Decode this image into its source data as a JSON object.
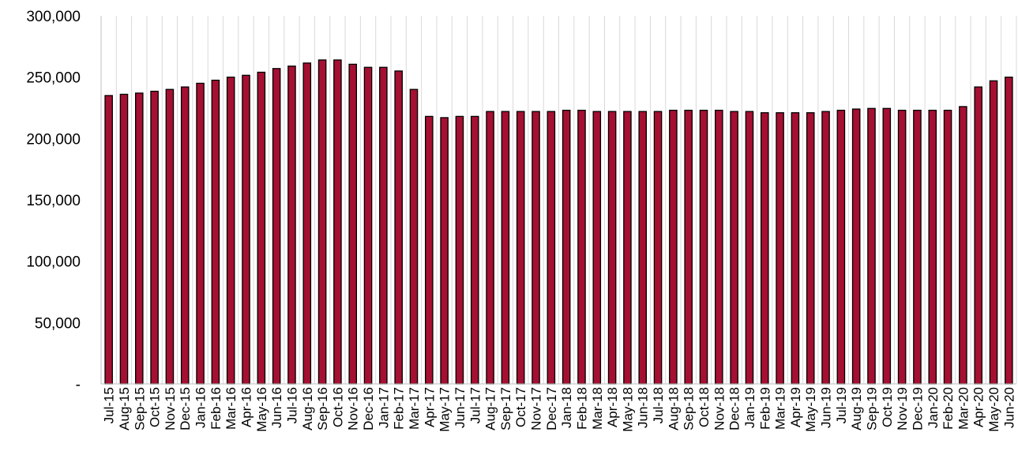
{
  "chart_data": {
    "type": "bar",
    "title": "",
    "xlabel": "",
    "ylabel": "",
    "ylim": [
      0,
      300000
    ],
    "y_ticks": [
      0,
      50000,
      100000,
      150000,
      200000,
      250000,
      300000
    ],
    "y_tick_labels": [
      "-",
      "50,000",
      "100,000",
      "150,000",
      "200,000",
      "250,000",
      "300,000"
    ],
    "grid": "vertical",
    "legend": "none",
    "bar_color": "#A50F32",
    "bar_edge_color": "#000000",
    "grid_color": "#D9D9D9",
    "categories": [
      "Jul-15",
      "Aug-15",
      "Sep-15",
      "Oct-15",
      "Nov-15",
      "Dec-15",
      "Jan-16",
      "Feb-16",
      "Mar-16",
      "Apr-16",
      "May-16",
      "Jun-16",
      "Jul-16",
      "Aug-16",
      "Sep-16",
      "Oct-16",
      "Nov-16",
      "Dec-16",
      "Jan-17",
      "Feb-17",
      "Mar-17",
      "Apr-17",
      "May-17",
      "Jun-17",
      "Jul-17",
      "Aug-17",
      "Sep-17",
      "Oct-17",
      "Nov-17",
      "Dec-17",
      "Jan-18",
      "Feb-18",
      "Mar-18",
      "Apr-18",
      "May-18",
      "Jun-18",
      "Jul-18",
      "Aug-18",
      "Sep-18",
      "Oct-18",
      "Nov-18",
      "Dec-18",
      "Jan-19",
      "Feb-19",
      "Mar-19",
      "Apr-19",
      "May-19",
      "Jun-19",
      "Jul-19",
      "Aug-19",
      "Sep-19",
      "Oct-19",
      "Nov-19",
      "Dec-19",
      "Jan-20",
      "Feb-20",
      "Mar-20",
      "Apr-20",
      "May-20",
      "Jun-20"
    ],
    "values": [
      235000,
      236000,
      237000,
      238500,
      240000,
      242000,
      245000,
      247500,
      250000,
      251500,
      254000,
      257000,
      259000,
      261500,
      264000,
      264000,
      260500,
      258000,
      258000,
      255000,
      240000,
      218000,
      217000,
      218000,
      218000,
      222000,
      222000,
      222000,
      222000,
      222000,
      223000,
      223000,
      222000,
      222000,
      222000,
      222000,
      222000,
      223000,
      223000,
      223000,
      223000,
      222000,
      222000,
      221000,
      221000,
      221000,
      221000,
      222000,
      223000,
      224000,
      224500,
      224500,
      223000,
      223000,
      223000,
      223000,
      226000,
      242000,
      247000,
      250000
    ]
  }
}
